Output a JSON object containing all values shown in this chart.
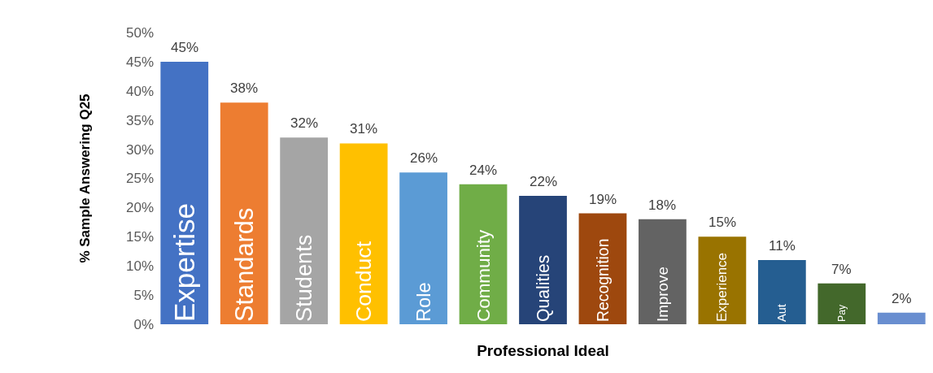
{
  "chart_data": {
    "type": "bar",
    "xlabel": "Professional Ideal",
    "ylabel": "% Sample Answering Q25",
    "categories": [
      "Expertise",
      "Standards",
      "Students",
      "Conduct",
      "Role",
      "Community",
      "Qualities",
      "Recognition",
      "Improve",
      "Experience",
      "Aut",
      "Pay",
      null
    ],
    "values": [
      45,
      38,
      32,
      31,
      26,
      24,
      22,
      19,
      18,
      15,
      11,
      7,
      2
    ],
    "value_labels": [
      "45%",
      "38%",
      "32%",
      "31%",
      "26%",
      "24%",
      "22%",
      "19%",
      "18%",
      "15%",
      "11%",
      "7%",
      "2%"
    ],
    "colors": [
      "#4472c4",
      "#ed7d31",
      "#a5a5a5",
      "#ffc000",
      "#5b9bd5",
      "#70ad47",
      "#264478",
      "#9e480e",
      "#636363",
      "#997300",
      "#255e91",
      "#43682b",
      "#698ed0"
    ],
    "ylim": [
      0,
      50
    ],
    "yticks": [
      {
        "value": 0,
        "label": "0%"
      },
      {
        "value": 5,
        "label": "5%"
      },
      {
        "value": 10,
        "label": "10%"
      },
      {
        "value": 15,
        "label": "15%"
      },
      {
        "value": 20,
        "label": "20%"
      },
      {
        "value": 25,
        "label": "25%"
      },
      {
        "value": 30,
        "label": "30%"
      },
      {
        "value": 35,
        "label": "35%"
      },
      {
        "value": 40,
        "label": "40%"
      },
      {
        "value": 45,
        "label": "45%"
      },
      {
        "value": 50,
        "label": "50%"
      }
    ],
    "tick_labels": "y"
  }
}
